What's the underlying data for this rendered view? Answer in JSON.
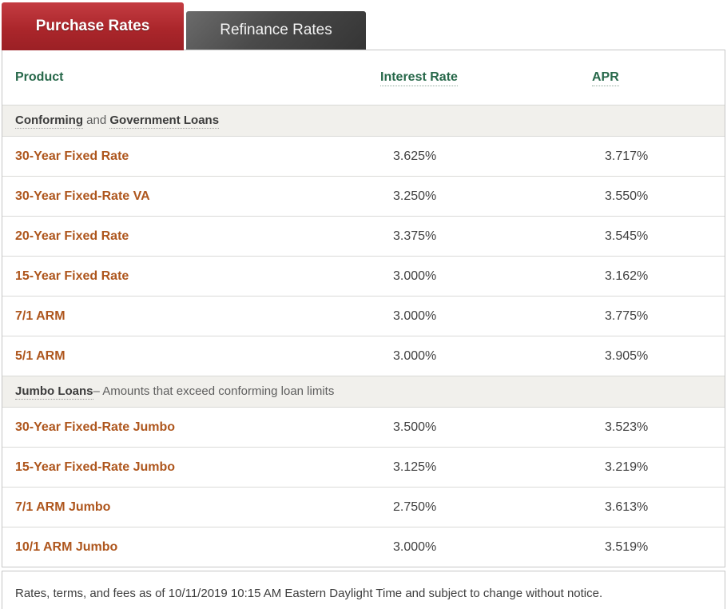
{
  "tabs": [
    {
      "label": "Purchase Rates",
      "active": true
    },
    {
      "label": "Refinance Rates",
      "active": false
    }
  ],
  "colors": {
    "active_tab_red": "#a82429",
    "inactive_tab_gray": "#3f3f3f",
    "header_green": "#27684a",
    "product_orange": "#ae561d",
    "section_bg": "#f1f0ec",
    "value_text": "#3f3f3f",
    "panel_border": "#c6c6c6"
  },
  "table": {
    "columns": [
      "Product",
      "Interest Rate",
      "APR"
    ],
    "sections": [
      {
        "title_bold1": "Conforming",
        "title_mid": " and ",
        "title_bold2": "Government Loans",
        "title_rest": "",
        "rows": [
          {
            "product": "30-Year Fixed Rate",
            "interest_rate": "3.625%",
            "apr": "3.717%"
          },
          {
            "product": "30-Year Fixed-Rate VA",
            "interest_rate": "3.250%",
            "apr": "3.550%"
          },
          {
            "product": "20-Year Fixed Rate",
            "interest_rate": "3.375%",
            "apr": "3.545%"
          },
          {
            "product": "15-Year Fixed Rate",
            "interest_rate": "3.000%",
            "apr": "3.162%"
          },
          {
            "product": "7/1 ARM",
            "interest_rate": "3.000%",
            "apr": "3.775%"
          },
          {
            "product": "5/1 ARM",
            "interest_rate": "3.000%",
            "apr": "3.905%"
          }
        ]
      },
      {
        "title_bold1": "Jumbo Loans",
        "title_mid": "",
        "title_bold2": "",
        "title_rest": "– Amounts that exceed conforming loan limits",
        "rows": [
          {
            "product": "30-Year Fixed-Rate Jumbo",
            "interest_rate": "3.500%",
            "apr": "3.523%"
          },
          {
            "product": "15-Year Fixed-Rate Jumbo",
            "interest_rate": "3.125%",
            "apr": "3.219%"
          },
          {
            "product": "7/1 ARM Jumbo",
            "interest_rate": "2.750%",
            "apr": "3.613%"
          },
          {
            "product": "10/1 ARM Jumbo",
            "interest_rate": "3.000%",
            "apr": "3.519%"
          }
        ]
      }
    ]
  },
  "footer": {
    "text": "Rates, terms, and fees as of 10/11/2019 10:15 AM Eastern Daylight Time and subject to change without notice."
  }
}
